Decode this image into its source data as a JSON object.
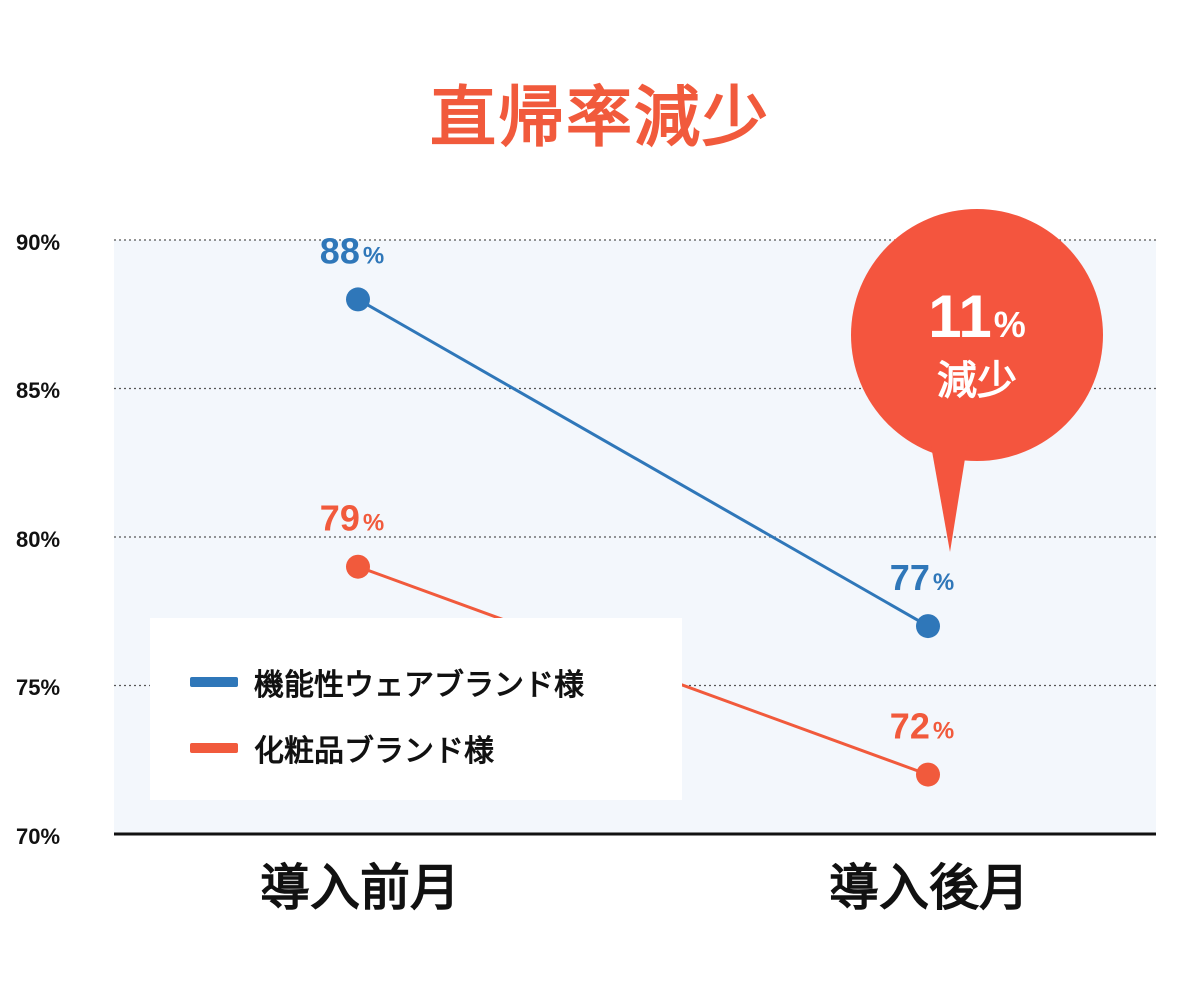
{
  "chart_data": {
    "type": "line",
    "title": "直帰率減少",
    "categories": [
      "導入前月",
      "導入後月"
    ],
    "yticks": [
      "90%",
      "85%",
      "80%",
      "75%",
      "70%"
    ],
    "ylim": [
      70,
      90
    ],
    "grid": true,
    "legend_position": "bottom-left",
    "series": [
      {
        "name": "機能性ウェアブランド様",
        "values": [
          88,
          77
        ],
        "labels": [
          "88",
          "77"
        ],
        "color": "#2f77b9"
      },
      {
        "name": "化粧品ブランド様",
        "values": [
          79,
          72
        ],
        "labels": [
          "79",
          "72"
        ],
        "color": "#f15a3c"
      }
    ],
    "percent_sign": "%",
    "annotation": {
      "value": "11",
      "unit": "%",
      "text": "減少",
      "color": "#f4553e"
    }
  }
}
